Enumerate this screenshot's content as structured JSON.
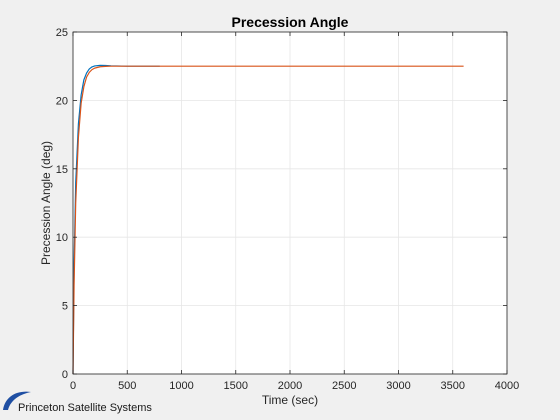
{
  "chart_data": {
    "type": "line",
    "title": "Precession Angle",
    "xlabel": "Time (sec)",
    "ylabel": "Precession Angle (deg)",
    "xlim": [
      0,
      4000
    ],
    "ylim": [
      0,
      25
    ],
    "xticks": [
      0,
      500,
      1000,
      1500,
      2000,
      2500,
      3000,
      3500,
      4000
    ],
    "yticks": [
      0,
      5,
      10,
      15,
      20,
      25
    ],
    "grid": true,
    "series": [
      {
        "color": "#0072bd",
        "x": [
          0,
          10,
          25,
          50,
          75,
          100,
          125,
          150,
          175,
          200,
          250,
          300,
          350,
          400,
          500,
          600,
          800
        ],
        "y": [
          0,
          8.0,
          14.0,
          18.3,
          20.4,
          21.5,
          22.0,
          22.3,
          22.45,
          22.52,
          22.56,
          22.55,
          22.53,
          22.52,
          22.5,
          22.5,
          22.5
        ]
      },
      {
        "color": "#d95319",
        "x": [
          0,
          10,
          25,
          50,
          75,
          100,
          125,
          150,
          175,
          200,
          250,
          300,
          350,
          400,
          500,
          800,
          1500,
          2500,
          3600
        ],
        "y": [
          0,
          6.5,
          12.5,
          17.3,
          19.8,
          21.0,
          21.7,
          22.05,
          22.25,
          22.36,
          22.46,
          22.49,
          22.5,
          22.5,
          22.5,
          22.5,
          22.5,
          22.5,
          22.5
        ]
      }
    ]
  },
  "footer": {
    "brand_text": "Princeton Satellite Systems",
    "logo_icon": "swoosh-logo-icon",
    "logo_color": "#1f4fa3"
  }
}
